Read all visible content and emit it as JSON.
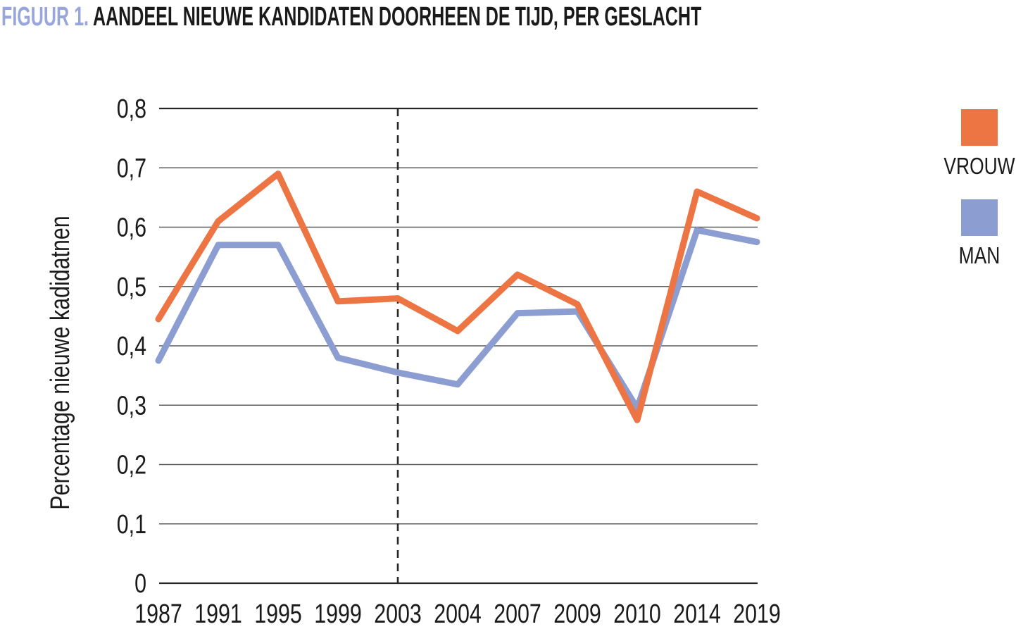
{
  "title": {
    "prefix": "FIGUUR 1.",
    "text": "AANDEEL NIEUWE KANDIDATEN DOORHEEN DE TIJD, PER GESLACHT"
  },
  "colors": {
    "accent": "#99A6DB",
    "vrouw": "#ED7443",
    "man": "#8C9DD1",
    "grid": "#5c5c5c",
    "grid_edge": "#262626",
    "annotation_line": "#262626",
    "text": "#1A1A1A"
  },
  "chart_data": {
    "type": "line",
    "title": "FIGUUR 1. AANDEEL NIEUWE KANDIDATEN DOORHEEN DE TIJD, PER GESLACHT",
    "categories": [
      "1987",
      "1991",
      "1995",
      "1999",
      "2003",
      "2004",
      "2007",
      "2009",
      "2010",
      "2014",
      "2019"
    ],
    "series": [
      {
        "name": "VROUW",
        "color": "#ED7443",
        "values": [
          0.445,
          0.61,
          0.69,
          0.475,
          0.48,
          0.425,
          0.52,
          0.47,
          0.275,
          0.66,
          0.615
        ]
      },
      {
        "name": "MAN",
        "color": "#8C9DD1",
        "values": [
          0.375,
          0.57,
          0.57,
          0.38,
          0.355,
          0.335,
          0.455,
          0.458,
          0.295,
          0.595,
          0.575
        ]
      }
    ],
    "xlabel": "",
    "ylabel": "Percentage nieuwe kadidatnen",
    "yticks": [
      "0",
      "0,1",
      "0,2",
      "0,3",
      "0,4",
      "0,5",
      "0,6",
      "0,7",
      "0,8"
    ],
    "ytick_values": [
      0,
      0.1,
      0.2,
      0.3,
      0.4,
      0.5,
      0.6,
      0.7,
      0.8
    ],
    "ylim": [
      0,
      0.8
    ],
    "grid": true,
    "annotation": {
      "type": "dashed-vline",
      "x_category": "2003"
    },
    "legend_position": "right"
  }
}
